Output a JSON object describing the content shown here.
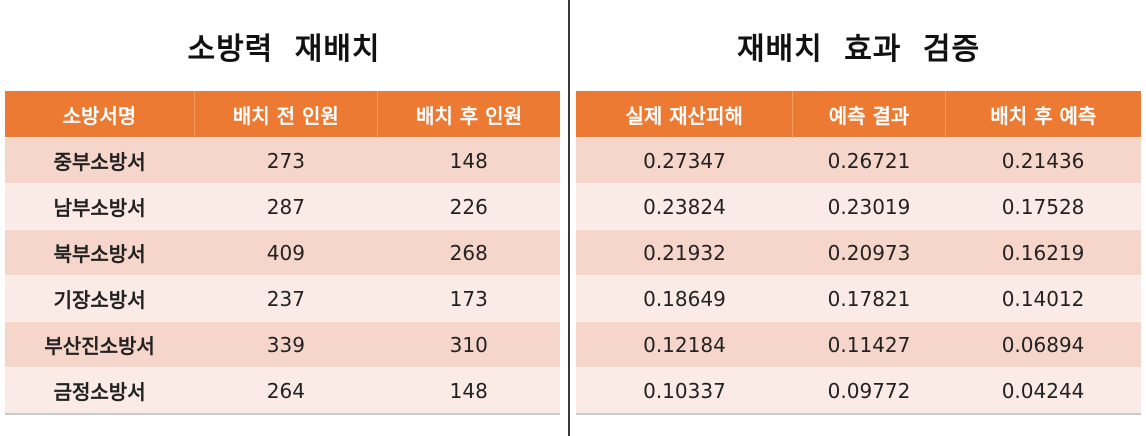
{
  "left": {
    "title": "소방력 재배치",
    "headers": [
      "소방서명",
      "배치 전 인원",
      "배치 후 인원"
    ],
    "rows": [
      [
        "중부소방서",
        "273",
        "148"
      ],
      [
        "남부소방서",
        "287",
        "226"
      ],
      [
        "북부소방서",
        "409",
        "268"
      ],
      [
        "기장소방서",
        "237",
        "173"
      ],
      [
        "부산진소방서",
        "339",
        "310"
      ],
      [
        "금정소방서",
        "264",
        "148"
      ]
    ]
  },
  "right": {
    "title": "재배치 효과 검증",
    "headers": [
      "실제 재산피해",
      "예측 결과",
      "배치 후 예측"
    ],
    "rows": [
      [
        "0.27347",
        "0.26721",
        "0.21436"
      ],
      [
        "0.23824",
        "0.23019",
        "0.17528"
      ],
      [
        "0.21932",
        "0.20973",
        "0.16219"
      ],
      [
        "0.18649",
        "0.17821",
        "0.14012"
      ],
      [
        "0.12184",
        "0.11427",
        "0.06894"
      ],
      [
        "0.10337",
        "0.09772",
        "0.04244"
      ]
    ]
  },
  "colors": {
    "header_bg": "#ec7a33",
    "row_odd": "#f6d6cb",
    "row_even": "#fbebe7"
  }
}
